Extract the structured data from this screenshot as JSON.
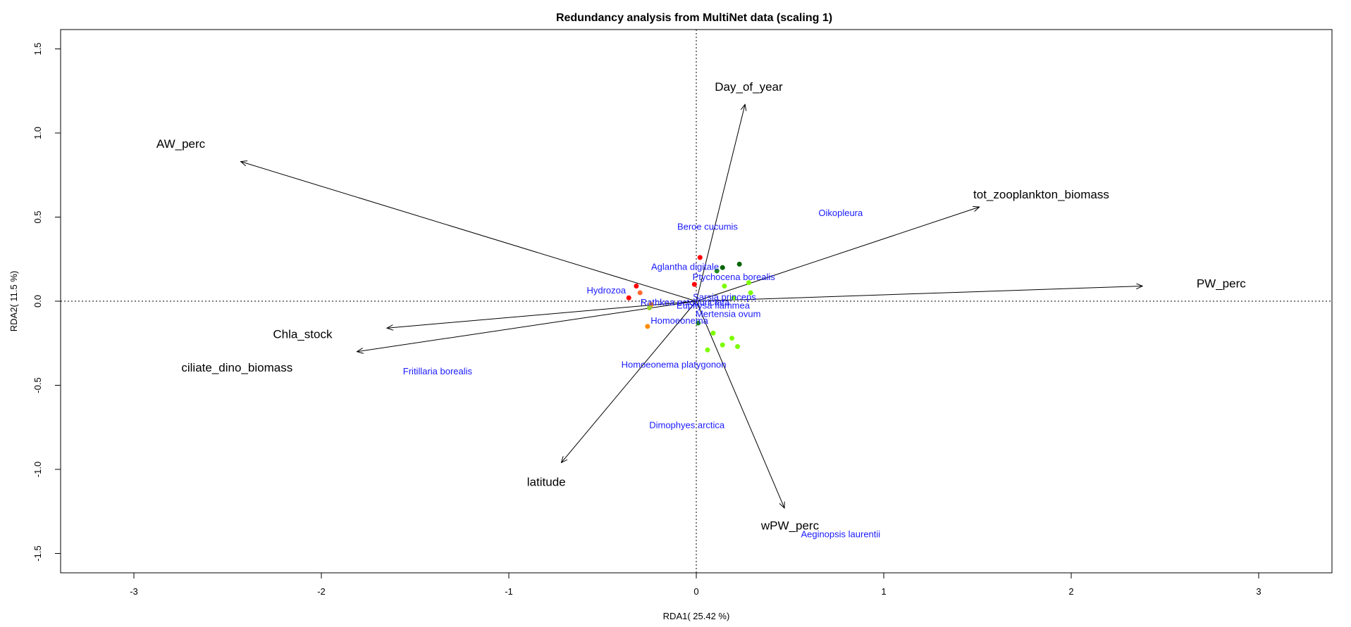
{
  "chart_data": {
    "type": "scatter",
    "title": "Redundancy analysis from MultiNet data (scaling 1)",
    "xlabel": "RDA1( 25.42 %)",
    "ylabel": "RDA2( 11.5 %)",
    "xlim": [
      -3.4,
      3.4
    ],
    "ylim": [
      -1.63,
      1.63
    ],
    "x_ticks": [
      -3,
      -2,
      -1,
      0,
      1,
      2,
      3
    ],
    "y_ticks": [
      -1.5,
      -1.0,
      -0.5,
      0.0,
      0.5,
      1.0,
      1.5
    ],
    "x_tick_labels": [
      "-3",
      "-2",
      "-1",
      "0",
      "1",
      "2",
      "3"
    ],
    "y_tick_labels": [
      "-1.5",
      "-1.0",
      "-0.5",
      "0.0",
      "0.5",
      "1.0",
      "1.5"
    ],
    "reference_lines": {
      "x": 0,
      "y": 0,
      "style": "dotted"
    },
    "environmental_vectors": [
      {
        "name": "Day_of_year",
        "x": 0.26,
        "y": 1.17,
        "label_x": 0.28,
        "label_y": 1.27
      },
      {
        "name": "AW_perc",
        "x": -2.43,
        "y": 0.83,
        "label_x": -2.75,
        "label_y": 0.93
      },
      {
        "name": "tot_zooplankton_biomass",
        "x": 1.51,
        "y": 0.56,
        "label_x": 1.84,
        "label_y": 0.63
      },
      {
        "name": "PW_perc",
        "x": 2.38,
        "y": 0.09,
        "label_x": 2.8,
        "label_y": 0.1
      },
      {
        "name": "Chla_stock",
        "x": -1.65,
        "y": -0.16,
        "label_x": -2.1,
        "label_y": -0.2
      },
      {
        "name": "ciliate_dino_biomass",
        "x": -1.81,
        "y": -0.3,
        "label_x": -2.45,
        "label_y": -0.4
      },
      {
        "name": "latitude",
        "x": -0.72,
        "y": -0.96,
        "label_x": -0.8,
        "label_y": -1.08
      },
      {
        "name": "wPW_perc",
        "x": 0.47,
        "y": -1.23,
        "label_x": 0.5,
        "label_y": -1.34
      }
    ],
    "species": [
      {
        "name": "Oikopleura",
        "x": 0.77,
        "y": 0.52
      },
      {
        "name": "Beroe cucumis",
        "x": 0.06,
        "y": 0.44
      },
      {
        "name": "Aglantha digitale",
        "x": -0.06,
        "y": 0.2
      },
      {
        "name": "Ptychocena borealis",
        "x": 0.2,
        "y": 0.14
      },
      {
        "name": "Hydrozoa",
        "x": -0.48,
        "y": 0.06
      },
      {
        "name": "Sarsia princeps",
        "x": 0.15,
        "y": 0.02
      },
      {
        "name": "Rathkea octopunctata",
        "x": -0.06,
        "y": -0.01
      },
      {
        "name": "Euphysa flammea",
        "x": 0.09,
        "y": -0.03
      },
      {
        "name": "Mertensia ovum",
        "x": 0.17,
        "y": -0.08
      },
      {
        "name": "Homoeonema",
        "x": -0.09,
        "y": -0.12
      },
      {
        "name": "Fritillaria borealis",
        "x": -1.38,
        "y": -0.42
      },
      {
        "name": "Homoeonema platygonon",
        "x": -0.12,
        "y": -0.38
      },
      {
        "name": "Dimophyes arctica",
        "x": -0.05,
        "y": -0.74
      },
      {
        "name": "Aeginopsis laurentii",
        "x": 0.77,
        "y": -1.39
      }
    ],
    "sites": [
      {
        "x": 0.02,
        "y": 0.26,
        "color": "#ff0000"
      },
      {
        "x": -0.01,
        "y": 0.1,
        "color": "#ff0000"
      },
      {
        "x": -0.32,
        "y": 0.09,
        "color": "#ff0000"
      },
      {
        "x": -0.36,
        "y": 0.02,
        "color": "#ff0000"
      },
      {
        "x": -0.3,
        "y": 0.05,
        "color": "#ff6a33"
      },
      {
        "x": -0.26,
        "y": -0.15,
        "color": "#ff8c00"
      },
      {
        "x": -0.24,
        "y": -0.02,
        "color": "#ff8c00"
      },
      {
        "x": -0.25,
        "y": -0.04,
        "color": "#9acd32"
      },
      {
        "x": 0.11,
        "y": 0.18,
        "color": "#228b22"
      },
      {
        "x": 0.14,
        "y": 0.2,
        "color": "#006400"
      },
      {
        "x": 0.23,
        "y": 0.22,
        "color": "#006400"
      },
      {
        "x": 0.15,
        "y": 0.09,
        "color": "#7cfc00"
      },
      {
        "x": 0.28,
        "y": 0.11,
        "color": "#7cfc00"
      },
      {
        "x": 0.29,
        "y": 0.05,
        "color": "#7cfc00"
      },
      {
        "x": 0.2,
        "y": 0.02,
        "color": "#7cfc00"
      },
      {
        "x": 0.01,
        "y": -0.13,
        "color": "#228b22"
      },
      {
        "x": 0.09,
        "y": -0.19,
        "color": "#7cfc00"
      },
      {
        "x": 0.19,
        "y": -0.22,
        "color": "#7cfc00"
      },
      {
        "x": 0.14,
        "y": -0.26,
        "color": "#7cfc00"
      },
      {
        "x": 0.22,
        "y": -0.27,
        "color": "#7cfc00"
      },
      {
        "x": 0.06,
        "y": -0.29,
        "color": "#7cfc00"
      }
    ]
  }
}
